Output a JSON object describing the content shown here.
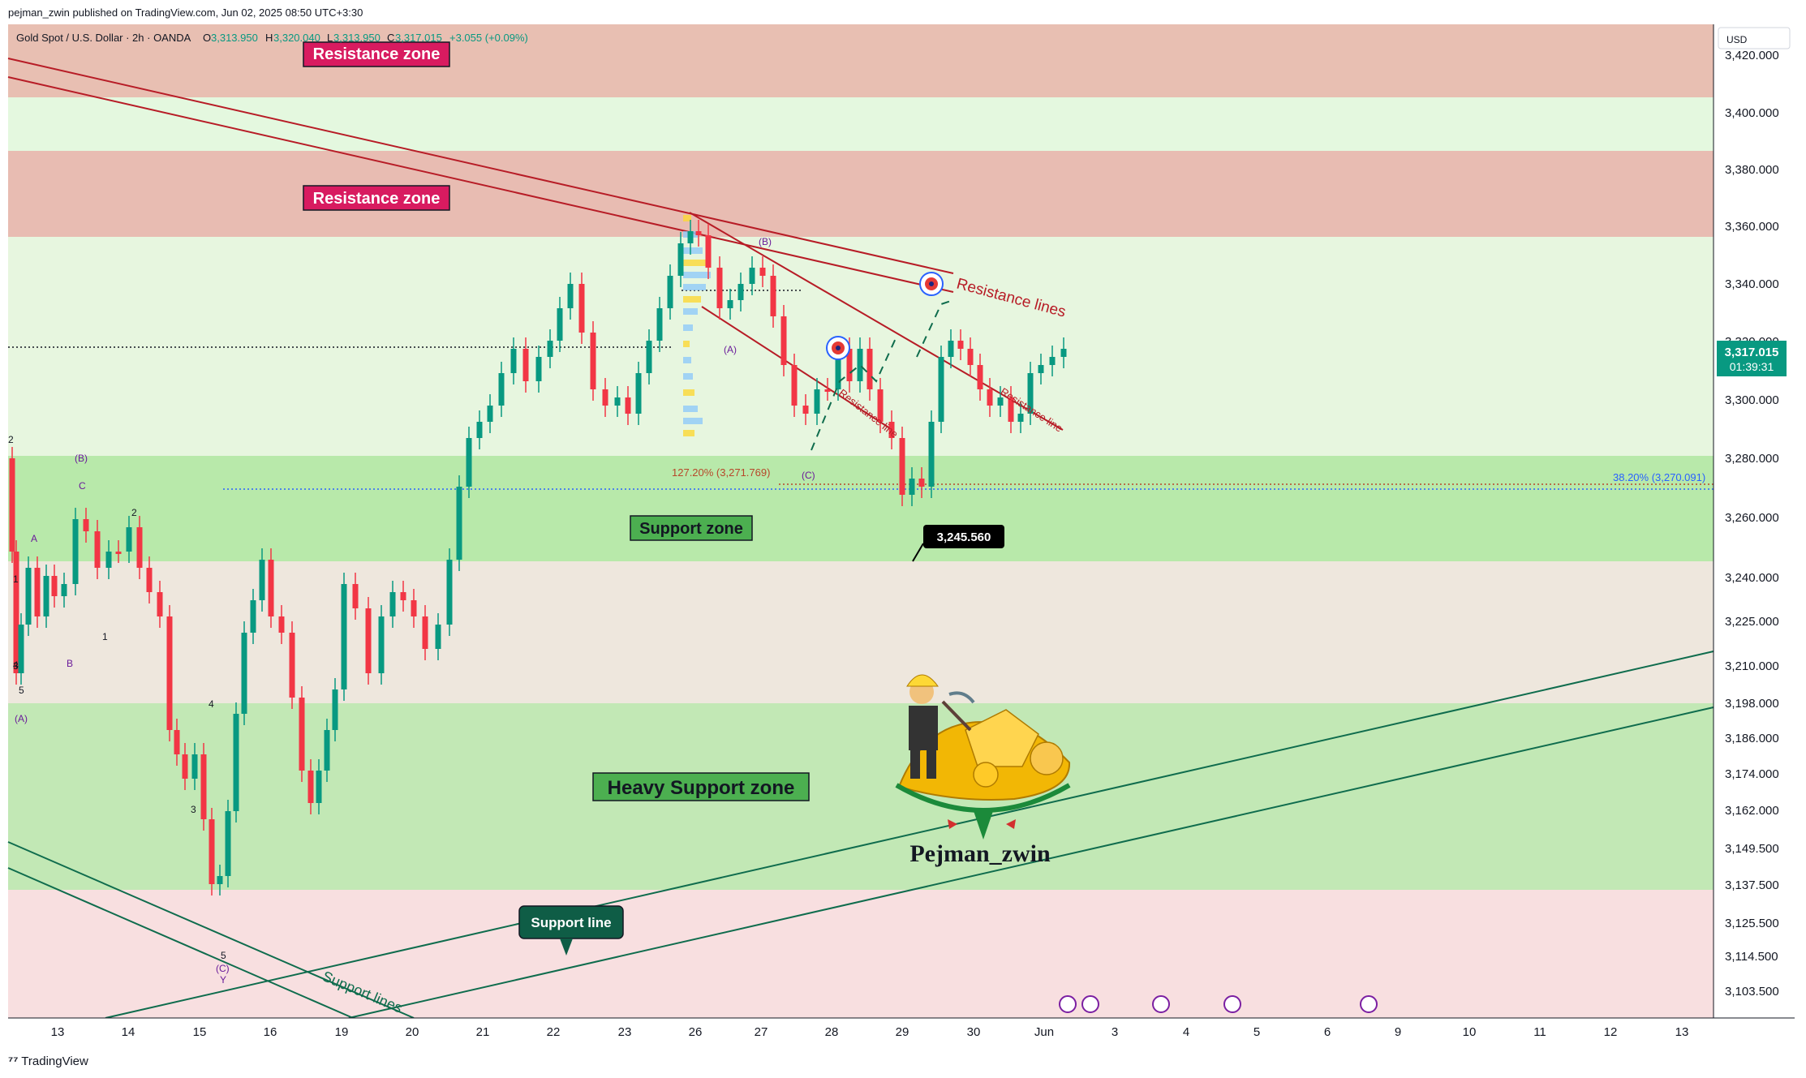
{
  "header": {
    "published": "pejman_zwin published on TradingView.com, Jun 02, 2025 08:50 UTC+3:30",
    "symbol": "Gold Spot / U.S. Dollar · 2h · OANDA",
    "ohlc": {
      "o_label": "O",
      "o": "3,313.950",
      "h_label": "H",
      "h": "3,320.040",
      "l_label": "L",
      "l": "3,313.950",
      "c_label": "C",
      "c": "3,317.015",
      "chg": "+3.055 (+0.09%)"
    }
  },
  "currency": "USD",
  "price_axis": {
    "labels": [
      "3,420.000",
      "3,400.000",
      "3,380.000",
      "3,360.000",
      "3,340.000",
      "3,320.000",
      "3,300.000",
      "3,280.000",
      "3,260.000",
      "3,240.000",
      "3,225.000",
      "3,210.000",
      "3,198.000",
      "3,186.000",
      "3,174.000",
      "3,162.000",
      "3,149.500",
      "3,137.500",
      "3,125.500",
      "3,114.500",
      "3,103.500"
    ],
    "current_price": "3,317.015",
    "countdown": "01:39:31"
  },
  "time_axis": [
    "13",
    "14",
    "15",
    "16",
    "19",
    "20",
    "21",
    "22",
    "23",
    "26",
    "27",
    "28",
    "29",
    "30",
    "Jun",
    "3",
    "4",
    "5",
    "6",
    "9",
    "10",
    "11",
    "12",
    "13"
  ],
  "zones": {
    "resistance_1": "Resistance zone",
    "resistance_2": "Resistance zone",
    "support": "Support zone",
    "heavy_support": "Heavy Support zone"
  },
  "annotations": {
    "resistance_lines": "Resistance lines",
    "resistance_line_1": "Resistance line",
    "resistance_line_2": "Resistance line",
    "support_lines": "Support lines",
    "support_line_callout": "Support line",
    "low_price": "3,245.560",
    "fib_127": "127.20% (3,271.769)",
    "fib_38": "38.20% (3,270.091)",
    "author": "Pejman_zwin"
  },
  "wave_labels": [
    "2",
    "(B)",
    "C",
    "A",
    "1",
    "2",
    "B",
    "1",
    "4",
    "3",
    "5",
    "(A)",
    "4",
    "3",
    "5",
    "(C)",
    "Y",
    "(B)",
    "(A)",
    "(C)"
  ],
  "footer": {
    "brand": "TradingView"
  },
  "colors": {
    "up": "#089981",
    "down": "#f23645",
    "resistance_zone": "#e7bfb3",
    "light_green": "#e6f9e1",
    "support_zone": "#b9eaaa",
    "heavy_support": "#c3e9b6",
    "lower_pink": "#f8dfe0",
    "trendline_red": "#b71c26",
    "trendline_green": "#0f6c4d"
  }
}
